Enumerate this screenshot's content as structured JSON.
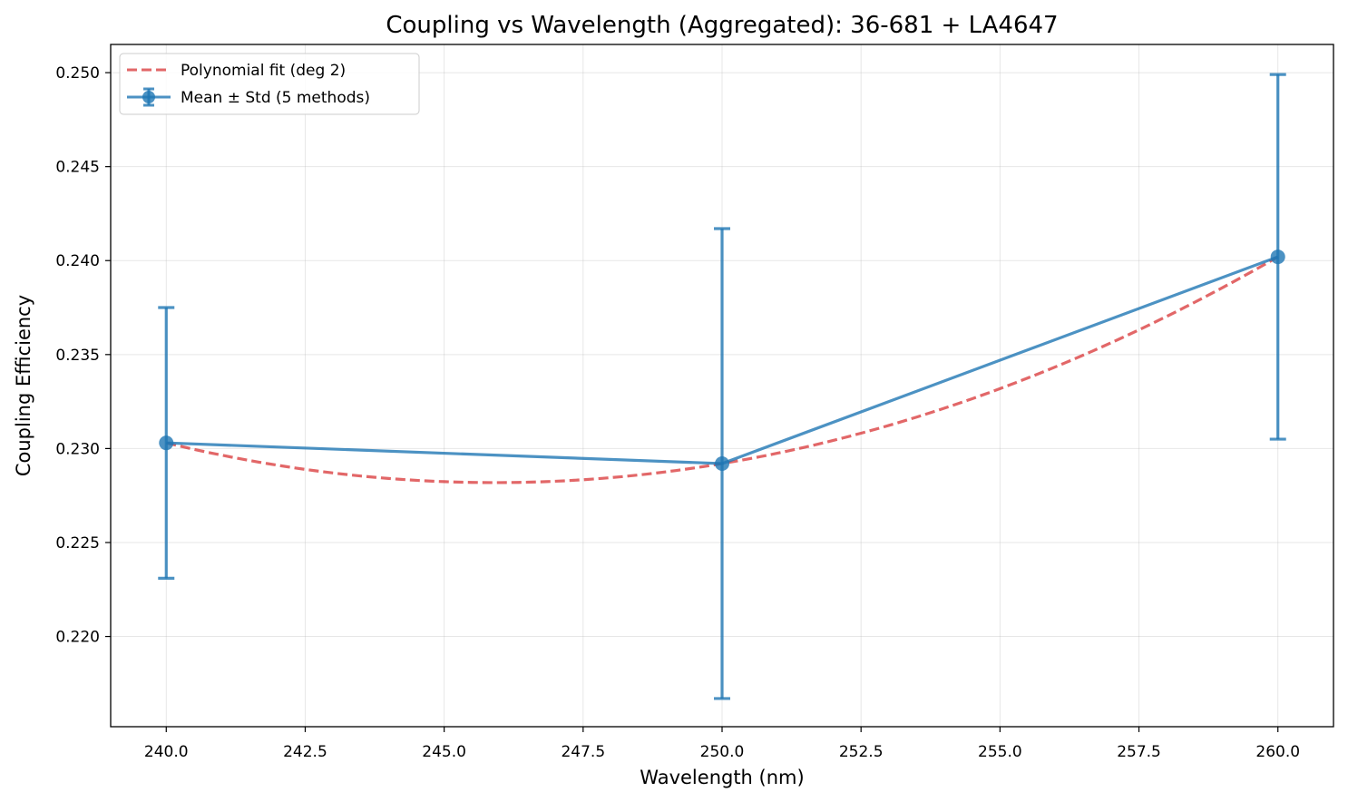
{
  "chart_data": {
    "type": "line",
    "title": "Coupling vs Wavelength (Aggregated): 36-681 + LA4647",
    "xlabel": "Wavelength (nm)",
    "ylabel": "Coupling Efficiency",
    "xlim": [
      239.0,
      261.0
    ],
    "ylim": [
      0.2152,
      0.2515
    ],
    "x_ticks": [
      240.0,
      242.5,
      245.0,
      247.5,
      250.0,
      252.5,
      255.0,
      257.5,
      260.0
    ],
    "x_tick_labels": [
      "240.0",
      "242.5",
      "245.0",
      "247.5",
      "250.0",
      "252.5",
      "255.0",
      "257.5",
      "260.0"
    ],
    "y_ticks": [
      0.22,
      0.225,
      0.23,
      0.235,
      0.24,
      0.245,
      0.25
    ],
    "y_tick_labels": [
      "0.220",
      "0.225",
      "0.230",
      "0.235",
      "0.240",
      "0.245",
      "0.250"
    ],
    "grid": true,
    "legend_position": "top-left",
    "series": [
      {
        "name": "Mean ± Std (5 methods)",
        "kind": "errorbar",
        "color": "#1f77b4",
        "x": [
          240.0,
          250.0,
          260.0
        ],
        "y": [
          0.2303,
          0.2292,
          0.2402
        ],
        "yerr": [
          0.0072,
          0.0125,
          0.0097
        ]
      },
      {
        "name": "Polynomial fit (deg 2)",
        "kind": "fit",
        "style": "dashed",
        "color": "#d62728",
        "degree": 2,
        "x": [
          240.0,
          250.0,
          260.0
        ],
        "y": [
          0.2303,
          0.2292,
          0.2402
        ]
      }
    ]
  }
}
